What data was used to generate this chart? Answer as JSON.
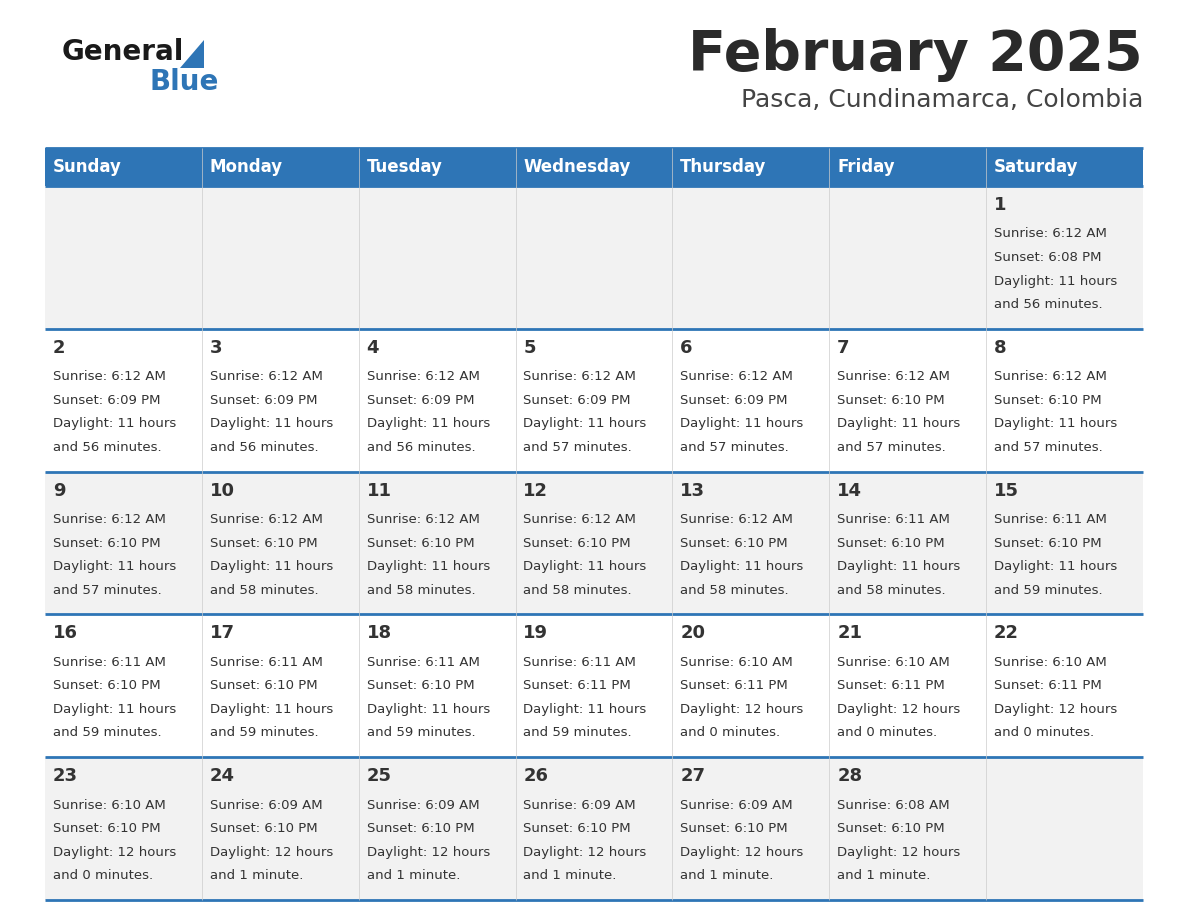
{
  "title": "February 2025",
  "subtitle": "Pasca, Cundinamarca, Colombia",
  "header_bg_color": "#2e75b6",
  "header_text_color": "#ffffff",
  "row_bg_colors": [
    "#f2f2f2",
    "#ffffff",
    "#f2f2f2",
    "#ffffff",
    "#f2f2f2"
  ],
  "cell_border_color": "#2e75b6",
  "text_color": "#333333",
  "day_names": [
    "Sunday",
    "Monday",
    "Tuesday",
    "Wednesday",
    "Thursday",
    "Friday",
    "Saturday"
  ],
  "days": [
    {
      "day": 1,
      "col": 6,
      "row": 0,
      "sunrise": "6:12 AM",
      "sunset": "6:08 PM",
      "daylight_line1": "Daylight: 11 hours",
      "daylight_line2": "and 56 minutes."
    },
    {
      "day": 2,
      "col": 0,
      "row": 1,
      "sunrise": "6:12 AM",
      "sunset": "6:09 PM",
      "daylight_line1": "Daylight: 11 hours",
      "daylight_line2": "and 56 minutes."
    },
    {
      "day": 3,
      "col": 1,
      "row": 1,
      "sunrise": "6:12 AM",
      "sunset": "6:09 PM",
      "daylight_line1": "Daylight: 11 hours",
      "daylight_line2": "and 56 minutes."
    },
    {
      "day": 4,
      "col": 2,
      "row": 1,
      "sunrise": "6:12 AM",
      "sunset": "6:09 PM",
      "daylight_line1": "Daylight: 11 hours",
      "daylight_line2": "and 56 minutes."
    },
    {
      "day": 5,
      "col": 3,
      "row": 1,
      "sunrise": "6:12 AM",
      "sunset": "6:09 PM",
      "daylight_line1": "Daylight: 11 hours",
      "daylight_line2": "and 57 minutes."
    },
    {
      "day": 6,
      "col": 4,
      "row": 1,
      "sunrise": "6:12 AM",
      "sunset": "6:09 PM",
      "daylight_line1": "Daylight: 11 hours",
      "daylight_line2": "and 57 minutes."
    },
    {
      "day": 7,
      "col": 5,
      "row": 1,
      "sunrise": "6:12 AM",
      "sunset": "6:10 PM",
      "daylight_line1": "Daylight: 11 hours",
      "daylight_line2": "and 57 minutes."
    },
    {
      "day": 8,
      "col": 6,
      "row": 1,
      "sunrise": "6:12 AM",
      "sunset": "6:10 PM",
      "daylight_line1": "Daylight: 11 hours",
      "daylight_line2": "and 57 minutes."
    },
    {
      "day": 9,
      "col": 0,
      "row": 2,
      "sunrise": "6:12 AM",
      "sunset": "6:10 PM",
      "daylight_line1": "Daylight: 11 hours",
      "daylight_line2": "and 57 minutes."
    },
    {
      "day": 10,
      "col": 1,
      "row": 2,
      "sunrise": "6:12 AM",
      "sunset": "6:10 PM",
      "daylight_line1": "Daylight: 11 hours",
      "daylight_line2": "and 58 minutes."
    },
    {
      "day": 11,
      "col": 2,
      "row": 2,
      "sunrise": "6:12 AM",
      "sunset": "6:10 PM",
      "daylight_line1": "Daylight: 11 hours",
      "daylight_line2": "and 58 minutes."
    },
    {
      "day": 12,
      "col": 3,
      "row": 2,
      "sunrise": "6:12 AM",
      "sunset": "6:10 PM",
      "daylight_line1": "Daylight: 11 hours",
      "daylight_line2": "and 58 minutes."
    },
    {
      "day": 13,
      "col": 4,
      "row": 2,
      "sunrise": "6:12 AM",
      "sunset": "6:10 PM",
      "daylight_line1": "Daylight: 11 hours",
      "daylight_line2": "and 58 minutes."
    },
    {
      "day": 14,
      "col": 5,
      "row": 2,
      "sunrise": "6:11 AM",
      "sunset": "6:10 PM",
      "daylight_line1": "Daylight: 11 hours",
      "daylight_line2": "and 58 minutes."
    },
    {
      "day": 15,
      "col": 6,
      "row": 2,
      "sunrise": "6:11 AM",
      "sunset": "6:10 PM",
      "daylight_line1": "Daylight: 11 hours",
      "daylight_line2": "and 59 minutes."
    },
    {
      "day": 16,
      "col": 0,
      "row": 3,
      "sunrise": "6:11 AM",
      "sunset": "6:10 PM",
      "daylight_line1": "Daylight: 11 hours",
      "daylight_line2": "and 59 minutes."
    },
    {
      "day": 17,
      "col": 1,
      "row": 3,
      "sunrise": "6:11 AM",
      "sunset": "6:10 PM",
      "daylight_line1": "Daylight: 11 hours",
      "daylight_line2": "and 59 minutes."
    },
    {
      "day": 18,
      "col": 2,
      "row": 3,
      "sunrise": "6:11 AM",
      "sunset": "6:10 PM",
      "daylight_line1": "Daylight: 11 hours",
      "daylight_line2": "and 59 minutes."
    },
    {
      "day": 19,
      "col": 3,
      "row": 3,
      "sunrise": "6:11 AM",
      "sunset": "6:11 PM",
      "daylight_line1": "Daylight: 11 hours",
      "daylight_line2": "and 59 minutes."
    },
    {
      "day": 20,
      "col": 4,
      "row": 3,
      "sunrise": "6:10 AM",
      "sunset": "6:11 PM",
      "daylight_line1": "Daylight: 12 hours",
      "daylight_line2": "and 0 minutes."
    },
    {
      "day": 21,
      "col": 5,
      "row": 3,
      "sunrise": "6:10 AM",
      "sunset": "6:11 PM",
      "daylight_line1": "Daylight: 12 hours",
      "daylight_line2": "and 0 minutes."
    },
    {
      "day": 22,
      "col": 6,
      "row": 3,
      "sunrise": "6:10 AM",
      "sunset": "6:11 PM",
      "daylight_line1": "Daylight: 12 hours",
      "daylight_line2": "and 0 minutes."
    },
    {
      "day": 23,
      "col": 0,
      "row": 4,
      "sunrise": "6:10 AM",
      "sunset": "6:10 PM",
      "daylight_line1": "Daylight: 12 hours",
      "daylight_line2": "and 0 minutes."
    },
    {
      "day": 24,
      "col": 1,
      "row": 4,
      "sunrise": "6:09 AM",
      "sunset": "6:10 PM",
      "daylight_line1": "Daylight: 12 hours",
      "daylight_line2": "and 1 minute."
    },
    {
      "day": 25,
      "col": 2,
      "row": 4,
      "sunrise": "6:09 AM",
      "sunset": "6:10 PM",
      "daylight_line1": "Daylight: 12 hours",
      "daylight_line2": "and 1 minute."
    },
    {
      "day": 26,
      "col": 3,
      "row": 4,
      "sunrise": "6:09 AM",
      "sunset": "6:10 PM",
      "daylight_line1": "Daylight: 12 hours",
      "daylight_line2": "and 1 minute."
    },
    {
      "day": 27,
      "col": 4,
      "row": 4,
      "sunrise": "6:09 AM",
      "sunset": "6:10 PM",
      "daylight_line1": "Daylight: 12 hours",
      "daylight_line2": "and 1 minute."
    },
    {
      "day": 28,
      "col": 5,
      "row": 4,
      "sunrise": "6:08 AM",
      "sunset": "6:10 PM",
      "daylight_line1": "Daylight: 12 hours",
      "daylight_line2": "and 1 minute."
    }
  ],
  "logo_general_color": "#1a1a1a",
  "logo_blue_color": "#2e75b6",
  "title_color": "#2a2a2a",
  "subtitle_color": "#444444"
}
